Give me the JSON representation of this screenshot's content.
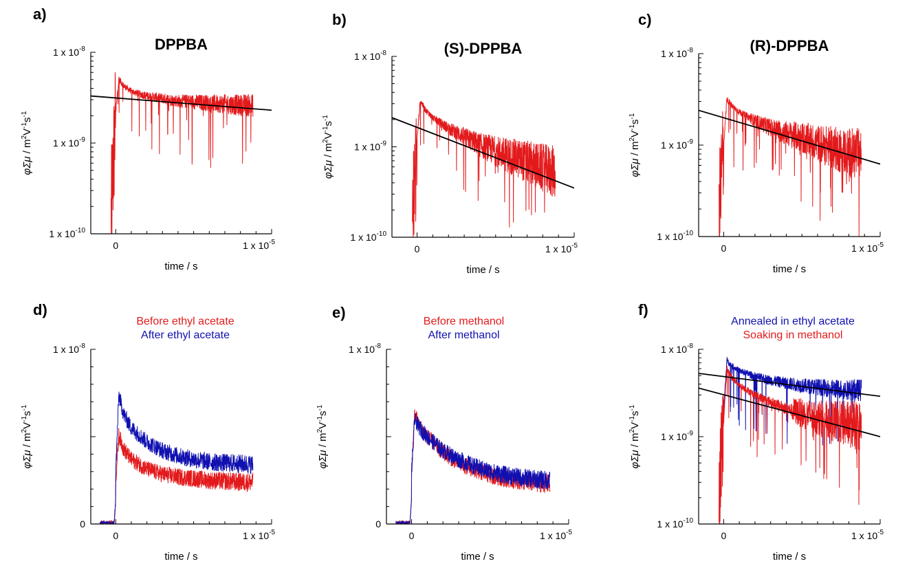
{
  "figure": {
    "panels": [
      "a)",
      "b)",
      "c)",
      "d)",
      "e)",
      "f)"
    ]
  },
  "colors": {
    "red": "#e31a1c",
    "blue": "#1010b0",
    "fit": "#000000"
  },
  "chart_data": [
    {
      "panel": "a)",
      "type": "line",
      "title": "DPPBA",
      "xlabel": "time / s",
      "ylabel": "φΣμ / m2V-1s-1",
      "yscale": "log",
      "xlim": [
        -1.6e-06,
        1e-05
      ],
      "ylim": [
        1e-10,
        1e-08
      ],
      "xticklabels": [
        "0",
        "1 x 10-5"
      ],
      "yticklabels": [
        "1 x 10-8",
        "1 x 10-9",
        "1 x 10-10"
      ],
      "series": [
        {
          "color": "red",
          "x": [
            -3e-07,
            0,
            2e-07,
            5e-07,
            1e-06,
            2e-06,
            3e-06,
            4e-06,
            5e-06,
            6e-06,
            7e-06,
            8e-06,
            8.8e-06
          ],
          "y": [
            1.5e-10,
            2.2e-09,
            5.1e-09,
            4.3e-09,
            3.7e-09,
            3.3e-09,
            3.1e-09,
            2.9e-09,
            2.85e-09,
            2.75e-09,
            2.7e-09,
            2.6e-09,
            2.6e-09
          ]
        },
        {
          "color": "fit",
          "x": [
            -1.6e-06,
            1e-05
          ],
          "y": [
            3.3e-09,
            2.3e-09
          ]
        }
      ]
    },
    {
      "panel": "b)",
      "type": "line",
      "title": "(S)-DPPBA",
      "xlabel": "time / s",
      "ylabel": "φΣμ / m2V-1s-1",
      "yscale": "log",
      "xlim": [
        -1.6e-06,
        1e-05
      ],
      "ylim": [
        1e-10,
        1e-08
      ],
      "xticklabels": [
        "0",
        "1 x 10-5"
      ],
      "yticklabels": [
        "1 x 10-8",
        "1 x 10-9",
        "1 x 10-10"
      ],
      "series": [
        {
          "color": "red",
          "x": [
            -3e-07,
            0,
            2e-07,
            5e-07,
            1e-06,
            2e-06,
            3e-06,
            4e-06,
            5e-06,
            6e-06,
            7e-06,
            8e-06,
            8.8e-06
          ],
          "y": [
            1.3e-10,
            1.2e-09,
            3.3e-09,
            2.6e-09,
            2.1e-09,
            1.6e-09,
            1.3e-09,
            1.05e-09,
            9e-10,
            7.8e-10,
            6.8e-10,
            5.8e-10,
            5.2e-10
          ]
        },
        {
          "color": "fit",
          "x": [
            -1.6e-06,
            1e-05
          ],
          "y": [
            2.1e-09,
            3.5e-10
          ]
        }
      ]
    },
    {
      "panel": "c)",
      "type": "line",
      "title": "(R)-DPPBA",
      "xlabel": "time / s",
      "ylabel": "φΣμ / m2V-1s-1",
      "yscale": "log",
      "xlim": [
        -1.6e-06,
        1e-05
      ],
      "ylim": [
        1e-10,
        1e-08
      ],
      "xticklabels": [
        "0",
        "1 x 10-5"
      ],
      "yticklabels": [
        "1 x 10-8",
        "1 x 10-9",
        "1 x 10-10"
      ],
      "series": [
        {
          "color": "red",
          "x": [
            -3e-07,
            0,
            2e-07,
            5e-07,
            1e-06,
            2e-06,
            3e-06,
            4e-06,
            5e-06,
            6e-06,
            7e-06,
            8e-06,
            8.8e-06
          ],
          "y": [
            1.5e-10,
            1e-09,
            3.2e-09,
            2.7e-09,
            2.3e-09,
            1.85e-09,
            1.55e-09,
            1.35e-09,
            1.2e-09,
            1.05e-09,
            9.3e-10,
            8.3e-10,
            7.8e-10
          ]
        },
        {
          "color": "fit",
          "x": [
            -1.6e-06,
            1e-05
          ],
          "y": [
            2.4e-09,
            6.2e-10
          ]
        }
      ]
    },
    {
      "panel": "d)",
      "type": "line",
      "title": "",
      "xlabel": "time / s",
      "ylabel": "φΣμ / m2V-1s-1",
      "yscale": "linear",
      "xlim": [
        -1.6e-06,
        1e-05
      ],
      "ylim": [
        0,
        1e-08
      ],
      "xticklabels": [
        "0",
        "1 x 10-5"
      ],
      "yticklabels": [
        "1 x 10-8",
        "0"
      ],
      "legend": [
        "Before ethyl acetate",
        "After ethyl acetate"
      ],
      "series": [
        {
          "name": "Before ethyl acetate",
          "color": "red",
          "x": [
            -1e-06,
            -1e-07,
            0,
            2e-07,
            5e-07,
            1e-06,
            2e-06,
            3e-06,
            4e-06,
            5e-06,
            6e-06,
            7e-06,
            8e-06,
            8.8e-06
          ],
          "y": [
            1e-10,
            1e-10,
            2.5e-09,
            5.1e-09,
            4.3e-09,
            3.7e-09,
            3.15e-09,
            2.85e-09,
            2.7e-09,
            2.6e-09,
            2.5e-09,
            2.45e-09,
            2.4e-09,
            2.4e-09
          ]
        },
        {
          "name": "After ethyl acetate",
          "color": "blue",
          "x": [
            -1e-06,
            -1e-07,
            0,
            2e-07,
            5e-07,
            1e-06,
            2e-06,
            3e-06,
            4e-06,
            5e-06,
            6e-06,
            7e-06,
            8e-06,
            8.8e-06
          ],
          "y": [
            5e-11,
            5e-11,
            3e-09,
            7.4e-09,
            6.3e-09,
            5.5e-09,
            4.7e-09,
            4.2e-09,
            3.9e-09,
            3.7e-09,
            3.55e-09,
            3.5e-09,
            3.45e-09,
            3.4e-09
          ]
        }
      ]
    },
    {
      "panel": "e)",
      "type": "line",
      "title": "",
      "xlabel": "time / s",
      "ylabel": "φΣμ / m2V-1s-1",
      "yscale": "linear",
      "xlim": [
        -1.6e-06,
        1e-05
      ],
      "ylim": [
        0,
        1e-08
      ],
      "xticklabels": [
        "0",
        "1 x 10-5"
      ],
      "yticklabels": [
        "1 x 10-8",
        "0"
      ],
      "legend": [
        "Before methanol",
        "After methanol"
      ],
      "series": [
        {
          "name": "Before methanol",
          "color": "red",
          "x": [
            -1e-06,
            -1e-07,
            0,
            2e-07,
            5e-07,
            1e-06,
            2e-06,
            3e-06,
            4e-06,
            5e-06,
            6e-06,
            7e-06,
            8e-06,
            8.8e-06
          ],
          "y": [
            1e-10,
            1e-10,
            3e-09,
            6.3e-09,
            5.6e-09,
            5e-09,
            4.1e-09,
            3.5e-09,
            3.1e-09,
            2.8e-09,
            2.6e-09,
            2.45e-09,
            2.35e-09,
            2.3e-09
          ]
        },
        {
          "name": "After methanol",
          "color": "blue",
          "x": [
            -1e-06,
            -1e-07,
            0,
            2e-07,
            5e-07,
            1e-06,
            2e-06,
            3e-06,
            4e-06,
            5e-06,
            6e-06,
            7e-06,
            8e-06,
            8.8e-06
          ],
          "y": [
            5e-11,
            5e-11,
            3e-09,
            6e-09,
            5.5e-09,
            5e-09,
            4.2e-09,
            3.7e-09,
            3.3e-09,
            3e-09,
            2.8e-09,
            2.65e-09,
            2.55e-09,
            2.5e-09
          ]
        }
      ]
    },
    {
      "panel": "f)",
      "type": "line",
      "title": "",
      "xlabel": "time / s",
      "ylabel": "φΣμ / m2V-1s-1",
      "yscale": "log",
      "xlim": [
        -1.6e-06,
        1e-05
      ],
      "ylim": [
        1e-10,
        1e-08
      ],
      "xticklabels": [
        "0",
        "1 x 10-5"
      ],
      "yticklabels": [
        "1 x 10-8",
        "1 x 10-9",
        "1 x 10-10"
      ],
      "legend": [
        "Annealed in ethyl acetate",
        "Soaking in methanol"
      ],
      "series": [
        {
          "name": "Annealed in ethyl acetate",
          "color": "blue",
          "x": [
            0,
            2e-07,
            5e-07,
            1e-06,
            2e-06,
            3e-06,
            4e-06,
            5e-06,
            6e-06,
            7e-06,
            8e-06,
            8.8e-06
          ],
          "y": [
            2e-09,
            7.5e-09,
            6.5e-09,
            5.7e-09,
            4.9e-09,
            4.4e-09,
            4.1e-09,
            3.85e-09,
            3.7e-09,
            3.55e-09,
            3.45e-09,
            3.4e-09
          ]
        },
        {
          "name": "Soaking in methanol",
          "color": "red",
          "x": [
            -3e-07,
            0,
            2e-07,
            5e-07,
            1e-06,
            2e-06,
            3e-06,
            4e-06,
            5e-06,
            6e-06,
            7e-06,
            8e-06,
            8.8e-06
          ],
          "y": [
            1.5e-10,
            1.5e-09,
            6.1e-09,
            4.8e-09,
            3.9e-09,
            3e-09,
            2.5e-09,
            2.1e-09,
            1.85e-09,
            1.65e-09,
            1.5e-09,
            1.4e-09,
            1.3e-09
          ]
        },
        {
          "color": "fit",
          "x": [
            -1.6e-06,
            1e-05
          ],
          "y": [
            5.3e-09,
            2.9e-09
          ]
        },
        {
          "color": "fit",
          "x": [
            -1.6e-06,
            1e-05
          ],
          "y": [
            3.6e-09,
            1e-09
          ]
        }
      ]
    }
  ]
}
